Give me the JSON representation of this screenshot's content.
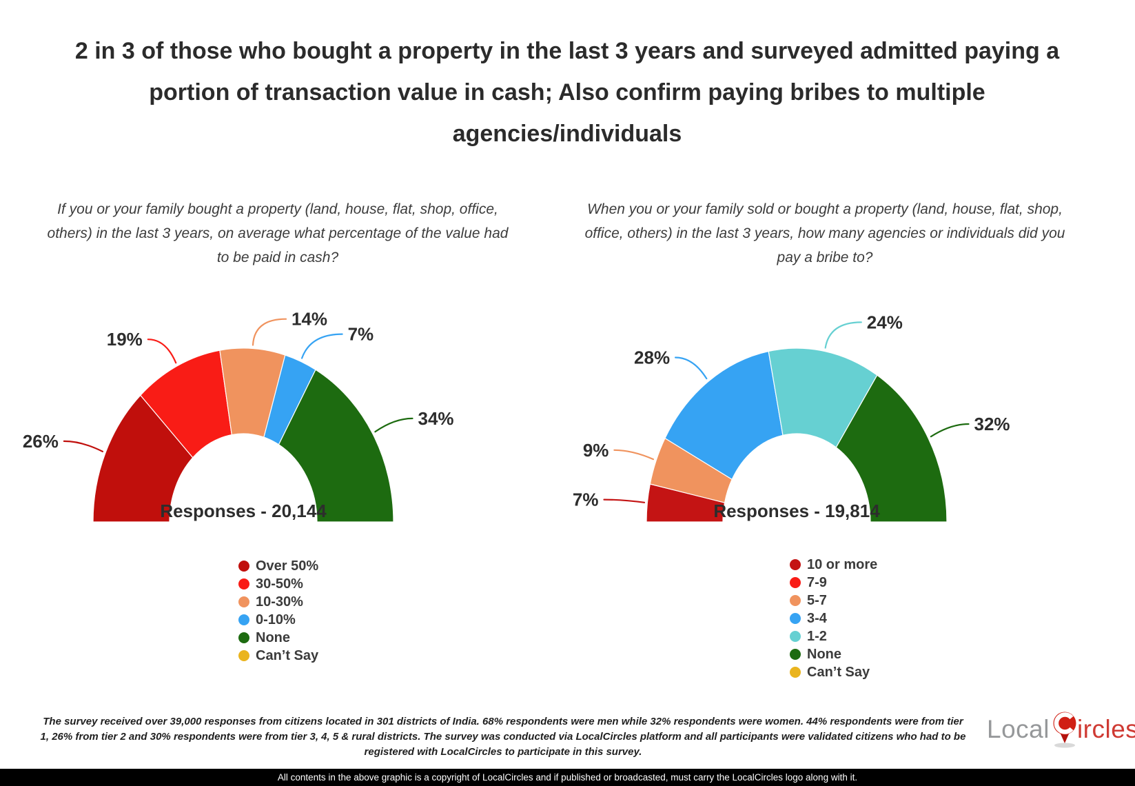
{
  "title": "2 in 3 of those who bought a property in the last 3 years and surveyed admitted paying a portion of transaction value in cash; Also confirm paying bribes to multiple agencies/individuals",
  "chart_data": [
    {
      "type": "pie",
      "variant": "half-donut",
      "question": "If you or your family bought a property (land, house, flat, shop, office, others) in the last 3 years, on average what percentage of the value had to be paid in cash?",
      "responses_label": "Responses - 20,144",
      "categories": [
        "Over 50%",
        "30-50%",
        "10-30%",
        "0-10%",
        "None",
        "Can’t Say"
      ],
      "values": [
        26,
        19,
        14,
        7,
        34,
        0
      ],
      "colors": [
        "#c00f0c",
        "#f91c16",
        "#f0935e",
        "#36a3f3",
        "#1d6b10",
        "#eab41e"
      ],
      "value_labels": [
        "26%",
        "19%",
        "14%",
        "7%",
        "34%",
        ""
      ],
      "legend_position": "bottom-center"
    },
    {
      "type": "pie",
      "variant": "half-donut",
      "question": "When you or your family sold or bought a property (land, house, flat, shop, office, others) in the last 3 years, how many agencies or individuals did you pay a bribe to?",
      "responses_label": "Responses - 19,814",
      "categories": [
        "10 or more",
        "7-9",
        "5-7",
        "3-4",
        "1-2",
        "None",
        "Can’t Say"
      ],
      "values": [
        7,
        0,
        9,
        28,
        24,
        32,
        0
      ],
      "colors": [
        "#c41414",
        "#f91c16",
        "#f0935e",
        "#36a3f3",
        "#66d0d2",
        "#1d6b10",
        "#eab41e"
      ],
      "value_labels": [
        "7%",
        "",
        "9%",
        "28%",
        "24%",
        "32%",
        ""
      ],
      "legend_position": "bottom-center"
    }
  ],
  "footer": {
    "note": "The survey received over 39,000 responses from citizens located in 301 districts of India. 68% respondents were men while 32% respondents were women. 44% respondents were from tier 1, 26% from tier 2 and 30% respondents were from tier 3, 4, 5 & rural districts. The survey was conducted via LocalCircles platform and all participants were validated citizens who had to be registered with LocalCircles to participate in this survey.",
    "copyright": "All contents in the above graphic is a copyright of LocalCircles and if published or broadcasted, must carry the LocalCircles logo along with it."
  },
  "logo": {
    "part1": "Local",
    "part2": "ircles"
  }
}
